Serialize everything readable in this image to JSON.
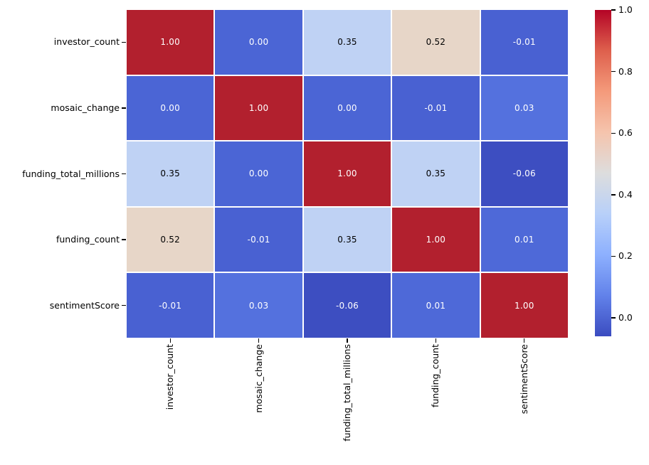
{
  "chart_data": {
    "type": "heatmap",
    "title": "",
    "xlabel": "",
    "ylabel": "",
    "colormap": "coolwarm",
    "vmin": -0.06,
    "vmax": 1.0,
    "grid_lines": "white",
    "categories": [
      "investor_count",
      "mosaic_change",
      "funding_total_millions",
      "funding_count",
      "sentimentScore"
    ],
    "matrix": [
      [
        1.0,
        0.0,
        0.35,
        0.52,
        -0.01
      ],
      [
        0.0,
        1.0,
        0.0,
        -0.01,
        0.03
      ],
      [
        0.35,
        0.0,
        1.0,
        0.35,
        -0.06
      ],
      [
        0.52,
        -0.01,
        0.35,
        1.0,
        0.01
      ],
      [
        -0.01,
        0.03,
        -0.06,
        0.01,
        1.0
      ]
    ],
    "cell_text": [
      [
        "1.00",
        "0.00",
        "0.35",
        "0.52",
        "-0.01"
      ],
      [
        "0.00",
        "1.00",
        "0.00",
        "-0.01",
        "0.03"
      ],
      [
        "0.35",
        "0.00",
        "1.00",
        "0.35",
        "-0.06"
      ],
      [
        "0.52",
        "-0.01",
        "0.35",
        "1.00",
        "0.01"
      ],
      [
        "-0.01",
        "0.03",
        "-0.06",
        "0.01",
        "1.00"
      ]
    ],
    "cell_colors": [
      [
        "#b2202e",
        "#4b65d5",
        "#bfd2f4",
        "#e7d6c8",
        "#4961d2"
      ],
      [
        "#4b65d5",
        "#b2202e",
        "#4b65d5",
        "#4961d2",
        "#5471de"
      ],
      [
        "#bfd2f4",
        "#4b65d5",
        "#b2202e",
        "#bfd2f4",
        "#3d4ec1"
      ],
      [
        "#e7d6c8",
        "#4961d2",
        "#bfd2f4",
        "#b2202e",
        "#4e69d8"
      ],
      [
        "#4961d2",
        "#5471de",
        "#3d4ec1",
        "#4e69d8",
        "#b2202e"
      ]
    ],
    "cell_text_colors": [
      [
        "#ffffff",
        "#ffffff",
        "#000000",
        "#000000",
        "#ffffff"
      ],
      [
        "#ffffff",
        "#ffffff",
        "#ffffff",
        "#ffffff",
        "#ffffff"
      ],
      [
        "#000000",
        "#ffffff",
        "#ffffff",
        "#000000",
        "#ffffff"
      ],
      [
        "#000000",
        "#ffffff",
        "#000000",
        "#ffffff",
        "#ffffff"
      ],
      [
        "#ffffff",
        "#ffffff",
        "#ffffff",
        "#ffffff",
        "#ffffff"
      ]
    ],
    "colorbar": {
      "tick_labels": [
        "1.0",
        "0.8",
        "0.6",
        "0.4",
        "0.2",
        "0.0"
      ],
      "tick_values": [
        1.0,
        0.8,
        0.6,
        0.4,
        0.2,
        0.0
      ],
      "gradient_top_to_bottom": [
        "#b40426",
        "#de604d",
        "#f49a7b",
        "#f5c4ad",
        "#dddddd",
        "#b8d0f9",
        "#8db0fe",
        "#6282ea",
        "#3b4cc0"
      ]
    }
  }
}
